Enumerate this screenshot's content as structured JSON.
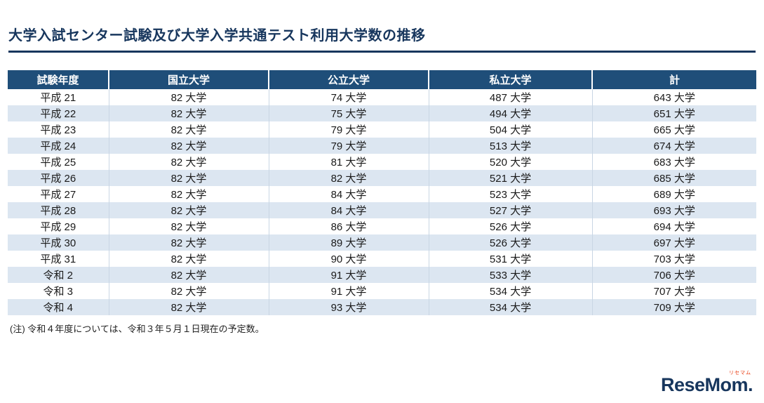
{
  "page": {
    "title": "大学入試センター試験及び大学入学共通テスト利用大学数の推移",
    "note": "(注) 令和４年度については、令和３年５月１日現在の予定数。",
    "logo": {
      "text": "ReseMom.",
      "ruby": "リセマム"
    },
    "colors": {
      "header_bg": "#1f4e79",
      "row_alt_bg": "#dce6f1",
      "title_navy": "#17365d"
    }
  },
  "table": {
    "headers": [
      "試験年度",
      "国立大学",
      "公立大学",
      "私立大学",
      "計"
    ],
    "rows": [
      [
        "平成 21",
        "82 大学",
        "74 大学",
        "487 大学",
        "643 大学"
      ],
      [
        "平成 22",
        "82 大学",
        "75 大学",
        "494 大学",
        "651 大学"
      ],
      [
        "平成 23",
        "82 大学",
        "79 大学",
        "504 大学",
        "665 大学"
      ],
      [
        "平成 24",
        "82 大学",
        "79 大学",
        "513 大学",
        "674 大学"
      ],
      [
        "平成 25",
        "82 大学",
        "81 大学",
        "520 大学",
        "683 大学"
      ],
      [
        "平成 26",
        "82 大学",
        "82 大学",
        "521 大学",
        "685 大学"
      ],
      [
        "平成 27",
        "82 大学",
        "84 大学",
        "523 大学",
        "689 大学"
      ],
      [
        "平成 28",
        "82 大学",
        "84 大学",
        "527 大学",
        "693 大学"
      ],
      [
        "平成 29",
        "82 大学",
        "86 大学",
        "526 大学",
        "694 大学"
      ],
      [
        "平成 30",
        "82 大学",
        "89 大学",
        "526 大学",
        "697 大学"
      ],
      [
        "平成 31",
        "82 大学",
        "90 大学",
        "531 大学",
        "703 大学"
      ],
      [
        "令和 2",
        "82 大学",
        "91 大学",
        "533 大学",
        "706 大学"
      ],
      [
        "令和 3",
        "82 大学",
        "91 大学",
        "534 大学",
        "707 大学"
      ],
      [
        "令和 4",
        "82 大学",
        "93 大学",
        "534 大学",
        "709 大学"
      ]
    ]
  },
  "chart_data": {
    "type": "table",
    "title": "大学入試センター試験及び大学入学共通テスト利用大学数の推移",
    "columns": [
      "試験年度",
      "国立大学",
      "公立大学",
      "私立大学",
      "計"
    ],
    "years": [
      "平成21",
      "平成22",
      "平成23",
      "平成24",
      "平成25",
      "平成26",
      "平成27",
      "平成28",
      "平成29",
      "平成30",
      "平成31",
      "令和2",
      "令和3",
      "令和4"
    ],
    "series": [
      {
        "name": "国立大学",
        "values": [
          82,
          82,
          82,
          82,
          82,
          82,
          82,
          82,
          82,
          82,
          82,
          82,
          82,
          82
        ]
      },
      {
        "name": "公立大学",
        "values": [
          74,
          75,
          79,
          79,
          81,
          82,
          84,
          84,
          86,
          89,
          90,
          91,
          91,
          93
        ]
      },
      {
        "name": "私立大学",
        "values": [
          487,
          494,
          504,
          513,
          520,
          521,
          523,
          527,
          526,
          526,
          531,
          533,
          534,
          534
        ]
      },
      {
        "name": "計",
        "values": [
          643,
          651,
          665,
          674,
          683,
          685,
          689,
          693,
          694,
          697,
          703,
          706,
          707,
          709
        ]
      }
    ],
    "unit": "大学",
    "footnote": "(注) 令和４年度については、令和３年５月１日現在の予定数。"
  }
}
